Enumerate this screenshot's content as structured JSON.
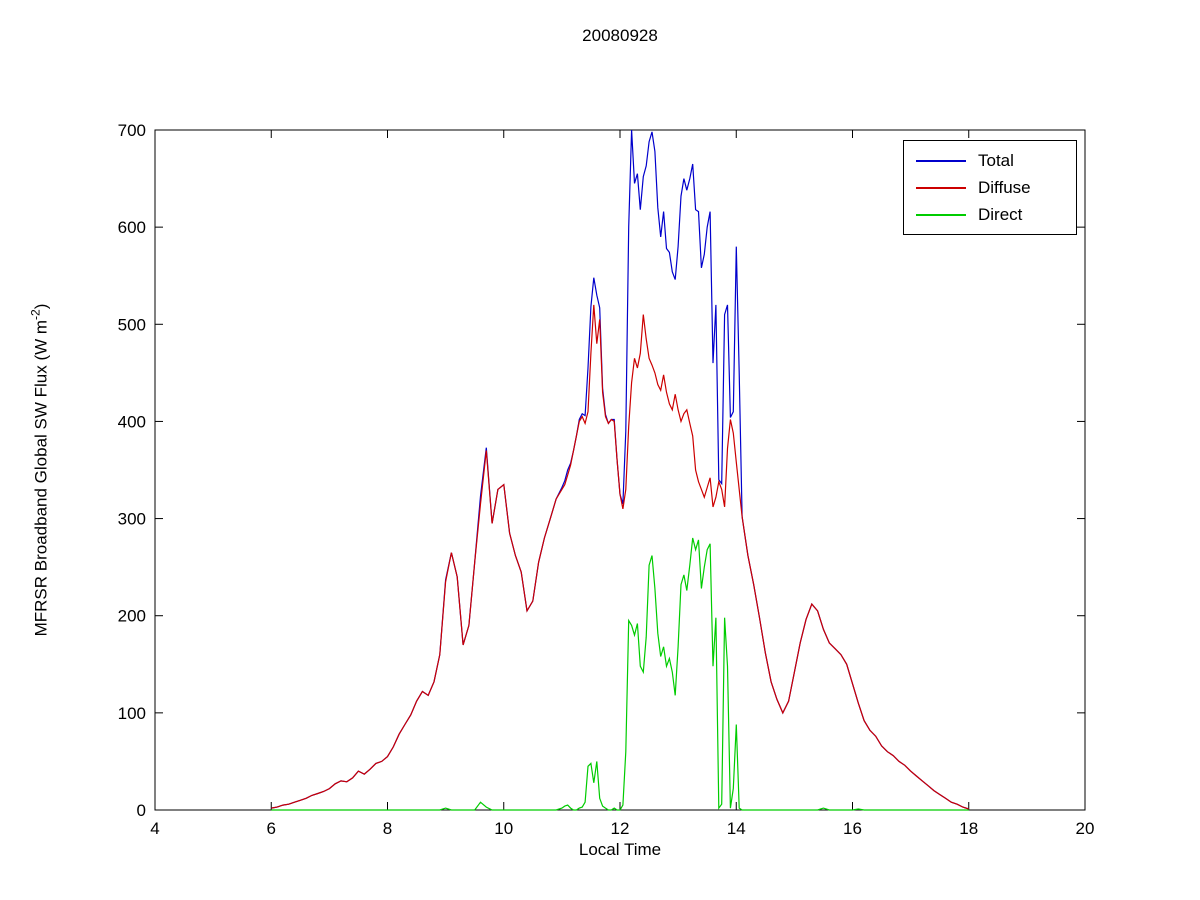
{
  "figure": {
    "title": "20080928",
    "xlabel": "Local Time",
    "ylabel_prefix": "MFRSR Broadband Global SW Flux (W m",
    "ylabel_sup": "-2",
    "ylabel_suffix": ")"
  },
  "chart_data": {
    "type": "line",
    "title": "20080928",
    "xlabel": "Local Time",
    "ylabel": "MFRSR Broadband Global SW Flux (W m^-2)",
    "xlim": [
      4,
      20
    ],
    "ylim": [
      0,
      700
    ],
    "xticks": [
      4,
      6,
      8,
      10,
      12,
      14,
      16,
      18,
      20
    ],
    "yticks": [
      0,
      100,
      200,
      300,
      400,
      500,
      600,
      700
    ],
    "grid": false,
    "legend_position": "top-right",
    "x": [
      6.0,
      6.1,
      6.2,
      6.3,
      6.4,
      6.5,
      6.6,
      6.7,
      6.8,
      6.9,
      7.0,
      7.1,
      7.2,
      7.3,
      7.4,
      7.5,
      7.6,
      7.7,
      7.8,
      7.9,
      8.0,
      8.1,
      8.2,
      8.3,
      8.4,
      8.5,
      8.6,
      8.7,
      8.8,
      8.9,
      9.0,
      9.1,
      9.2,
      9.3,
      9.4,
      9.5,
      9.6,
      9.7,
      9.8,
      9.9,
      10.0,
      10.1,
      10.2,
      10.3,
      10.4,
      10.5,
      10.6,
      10.7,
      10.8,
      10.9,
      11.0,
      11.05,
      11.1,
      11.15,
      11.2,
      11.25,
      11.3,
      11.35,
      11.4,
      11.45,
      11.5,
      11.55,
      11.6,
      11.65,
      11.7,
      11.75,
      11.8,
      11.85,
      11.9,
      11.95,
      12.0,
      12.05,
      12.1,
      12.15,
      12.2,
      12.25,
      12.3,
      12.35,
      12.4,
      12.45,
      12.5,
      12.55,
      12.6,
      12.65,
      12.7,
      12.75,
      12.8,
      12.85,
      12.9,
      12.95,
      13.0,
      13.05,
      13.1,
      13.15,
      13.2,
      13.25,
      13.3,
      13.35,
      13.4,
      13.45,
      13.5,
      13.55,
      13.6,
      13.65,
      13.7,
      13.75,
      13.8,
      13.85,
      13.9,
      13.95,
      14.0,
      14.05,
      14.1,
      14.15,
      14.2,
      14.3,
      14.4,
      14.5,
      14.6,
      14.7,
      14.8,
      14.9,
      15.0,
      15.1,
      15.2,
      15.3,
      15.4,
      15.5,
      15.6,
      15.7,
      15.8,
      15.9,
      16.0,
      16.1,
      16.2,
      16.3,
      16.4,
      16.5,
      16.6,
      16.7,
      16.8,
      16.9,
      17.0,
      17.1,
      17.2,
      17.3,
      17.4,
      17.5,
      17.6,
      17.7,
      17.8,
      17.9,
      18.0
    ],
    "series": [
      {
        "name": "Total",
        "color": "#0000cc",
        "y": [
          2,
          3,
          5,
          6,
          8,
          10,
          12,
          15,
          17,
          19,
          22,
          27,
          30,
          29,
          33,
          40,
          37,
          42,
          48,
          50,
          55,
          65,
          78,
          88,
          98,
          112,
          122,
          118,
          132,
          160,
          237,
          265,
          240,
          170,
          190,
          255,
          323,
          373,
          295,
          330,
          335,
          285,
          262,
          245,
          205,
          215,
          255,
          280,
          300,
          320,
          332,
          339,
          350,
          357,
          370,
          385,
          402,
          408,
          406,
          455,
          518,
          548,
          530,
          517,
          434,
          407,
          398,
          402,
          402,
          360,
          325,
          315,
          390,
          600,
          700,
          645,
          655,
          618,
          652,
          663,
          688,
          698,
          678,
          620,
          590,
          616,
          578,
          574,
          554,
          546,
          580,
          632,
          650,
          638,
          650,
          665,
          618,
          616,
          558,
          572,
          600,
          616,
          460,
          520,
          340,
          336,
          510,
          520,
          404,
          410,
          580,
          450,
          302,
          282,
          262,
          232,
          198,
          162,
          132,
          114,
          100,
          112,
          142,
          172,
          196,
          212,
          205,
          186,
          172,
          166,
          160,
          150,
          130,
          110,
          92,
          82,
          76,
          66,
          60,
          56,
          50,
          46,
          40,
          35,
          30,
          25,
          20,
          16,
          12,
          8,
          6,
          3,
          1
        ]
      },
      {
        "name": "Diffuse",
        "color": "#cc0000",
        "y": [
          2,
          3,
          5,
          6,
          8,
          10,
          12,
          15,
          17,
          19,
          22,
          27,
          30,
          29,
          33,
          40,
          37,
          42,
          48,
          50,
          55,
          65,
          78,
          88,
          98,
          112,
          122,
          118,
          132,
          160,
          235,
          265,
          240,
          170,
          190,
          255,
          315,
          370,
          295,
          330,
          335,
          285,
          262,
          245,
          205,
          215,
          255,
          280,
          300,
          320,
          330,
          335,
          345,
          355,
          370,
          385,
          400,
          405,
          398,
          410,
          470,
          520,
          480,
          505,
          430,
          405,
          398,
          402,
          400,
          360,
          325,
          310,
          330,
          395,
          440,
          465,
          455,
          470,
          510,
          485,
          465,
          458,
          450,
          438,
          432,
          448,
          430,
          418,
          412,
          428,
          412,
          400,
          408,
          412,
          398,
          385,
          350,
          338,
          330,
          322,
          332,
          342,
          312,
          322,
          338,
          330,
          312,
          372,
          402,
          388,
          358,
          330,
          302,
          282,
          262,
          232,
          198,
          162,
          132,
          114,
          100,
          112,
          142,
          172,
          196,
          212,
          205,
          186,
          172,
          166,
          160,
          150,
          130,
          110,
          92,
          82,
          76,
          66,
          60,
          56,
          50,
          46,
          40,
          35,
          30,
          25,
          20,
          16,
          12,
          8,
          6,
          3,
          1
        ]
      },
      {
        "name": "Direct",
        "color": "#00cc00",
        "y": [
          0,
          0,
          0,
          0,
          0,
          0,
          0,
          0,
          0,
          0,
          0,
          0,
          0,
          0,
          0,
          0,
          0,
          0,
          0,
          0,
          0,
          0,
          0,
          0,
          0,
          0,
          0,
          0,
          0,
          0,
          2,
          0,
          0,
          0,
          0,
          0,
          8,
          3,
          0,
          0,
          0,
          0,
          0,
          0,
          0,
          0,
          0,
          0,
          0,
          0,
          2,
          4,
          5,
          2,
          0,
          0,
          2,
          3,
          8,
          45,
          48,
          28,
          50,
          12,
          4,
          2,
          0,
          0,
          2,
          0,
          0,
          5,
          60,
          195,
          190,
          180,
          192,
          148,
          142,
          178,
          252,
          262,
          228,
          182,
          158,
          168,
          148,
          156,
          142,
          118,
          168,
          232,
          242,
          226,
          252,
          280,
          268,
          278,
          228,
          250,
          268,
          274,
          148,
          198,
          2,
          6,
          198,
          148,
          2,
          22,
          88,
          2,
          0,
          0,
          0,
          0,
          0,
          0,
          0,
          0,
          0,
          0,
          0,
          0,
          0,
          0,
          0,
          2,
          0,
          0,
          0,
          0,
          0,
          1,
          0,
          0,
          0,
          0,
          0,
          0,
          0,
          0,
          0,
          0,
          0,
          0,
          0,
          0,
          0,
          0,
          0,
          0,
          0
        ]
      }
    ]
  }
}
